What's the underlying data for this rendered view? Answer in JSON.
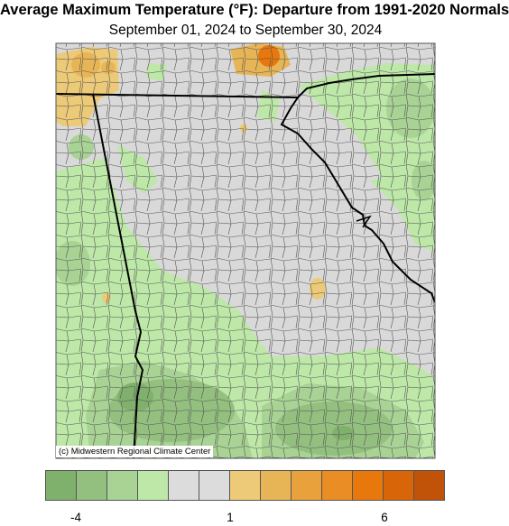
{
  "header": {
    "title": "Average Maximum Temperature (°F): Departure from 1991-2020 Normals",
    "subtitle": "September 01, 2024 to September 30, 2024"
  },
  "map": {
    "credit": "(c) Midwestern Regional Climate Center",
    "colors": {
      "background": "#d9d9d9",
      "border": "#000000",
      "county_line": "#555555",
      "frame": "#555555"
    }
  },
  "legend": {
    "colors": [
      "#7fb06c",
      "#93c07f",
      "#a8d394",
      "#bde8a8",
      "#dcdcdc",
      "#dcdcdc",
      "#ecca78",
      "#e8b556",
      "#e9a23b",
      "#ea8d24",
      "#e8780c",
      "#d86608",
      "#c05307"
    ],
    "labels": [
      "-4",
      "1",
      "6"
    ]
  }
}
